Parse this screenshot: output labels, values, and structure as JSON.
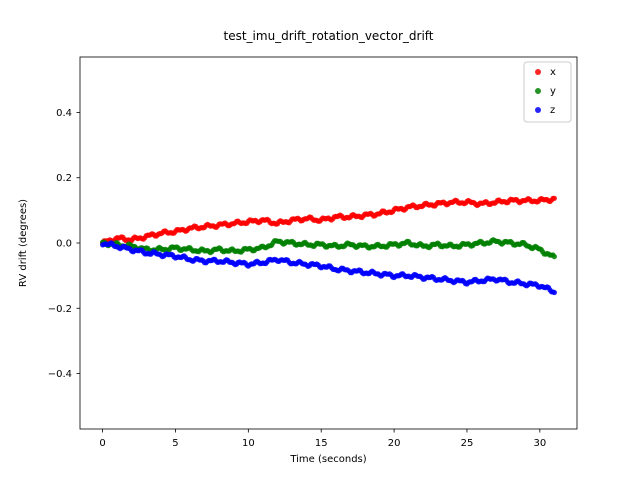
{
  "figure": {
    "background": "#ffffff"
  },
  "chart_data": {
    "type": "scatter",
    "title": "test_imu_drift_rotation_vector_drift",
    "xlabel": "Time (seconds)",
    "ylabel": "RV drift (degrees)",
    "xlim": [
      -1.55,
      32.55
    ],
    "ylim": [
      -0.57,
      0.57
    ],
    "xticks": [
      0,
      5,
      10,
      15,
      20,
      25,
      30
    ],
    "yticks": [
      -0.4,
      -0.2,
      0.0,
      0.2,
      0.4
    ],
    "grid": false,
    "legend": {
      "position": "upper right",
      "entries": [
        {
          "label": "x",
          "color": "#ff0000"
        },
        {
          "label": "y",
          "color": "#008000"
        },
        {
          "label": "z",
          "color": "#0000ff"
        }
      ]
    },
    "x": [
      0,
      1,
      2,
      3,
      4,
      5,
      6,
      7,
      8,
      9,
      10,
      11,
      12,
      13,
      14,
      15,
      16,
      17,
      18,
      19,
      20,
      21,
      22,
      23,
      24,
      25,
      26,
      27,
      28,
      29,
      30,
      31
    ],
    "series": [
      {
        "name": "x",
        "color": "#ff0000",
        "values": [
          0.0,
          0.015,
          0.01,
          0.02,
          0.03,
          0.035,
          0.045,
          0.05,
          0.055,
          0.06,
          0.065,
          0.07,
          0.06,
          0.07,
          0.075,
          0.07,
          0.08,
          0.08,
          0.085,
          0.09,
          0.1,
          0.11,
          0.115,
          0.12,
          0.125,
          0.125,
          0.12,
          0.125,
          0.13,
          0.13,
          0.13,
          0.135
        ]
      },
      {
        "name": "y",
        "color": "#008000",
        "values": [
          0.0,
          -0.005,
          -0.01,
          -0.02,
          -0.02,
          -0.015,
          -0.02,
          -0.025,
          -0.02,
          -0.025,
          -0.02,
          -0.015,
          0.005,
          0.0,
          -0.005,
          -0.005,
          -0.01,
          -0.005,
          -0.01,
          -0.01,
          -0.005,
          0.0,
          -0.01,
          -0.005,
          -0.01,
          -0.005,
          0.0,
          0.005,
          0.0,
          -0.005,
          -0.02,
          -0.045
        ]
      },
      {
        "name": "z",
        "color": "#0000ff",
        "values": [
          0.0,
          -0.01,
          -0.02,
          -0.03,
          -0.035,
          -0.04,
          -0.05,
          -0.055,
          -0.055,
          -0.06,
          -0.065,
          -0.06,
          -0.05,
          -0.06,
          -0.065,
          -0.07,
          -0.08,
          -0.085,
          -0.09,
          -0.095,
          -0.1,
          -0.1,
          -0.105,
          -0.11,
          -0.115,
          -0.12,
          -0.115,
          -0.11,
          -0.12,
          -0.125,
          -0.13,
          -0.15
        ]
      }
    ]
  }
}
